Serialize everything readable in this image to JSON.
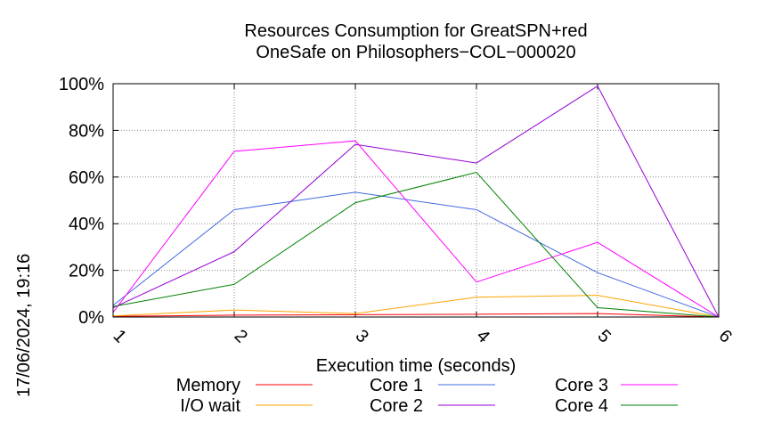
{
  "chart_data": {
    "type": "line",
    "title": [
      "Resources Consumption for GreatSPN+red",
      "OneSafe on Philosophers−COL−000020"
    ],
    "xlabel": "Execution time (seconds)",
    "ylabel": "",
    "xlim": [
      1,
      6
    ],
    "ylim": [
      0,
      100
    ],
    "x_ticks": [
      "1",
      "2",
      "3",
      "4",
      "5",
      "6"
    ],
    "y_ticks": [
      "0%",
      "20%",
      "40%",
      "60%",
      "80%",
      "100%"
    ],
    "y_tick_values": [
      0,
      20,
      40,
      60,
      80,
      100
    ],
    "grid": true,
    "legend_position": "bottom",
    "timestamp": "17/06/2024, 19:16",
    "x": [
      1,
      2,
      3,
      4,
      5,
      6
    ],
    "series": [
      {
        "name": "Memory",
        "color": "#ff0000",
        "values": [
          0.3,
          0.8,
          1,
          1.2,
          1.5,
          0
        ]
      },
      {
        "name": "I/O wait",
        "color": "#ffa500",
        "values": [
          0.5,
          3,
          1.5,
          8.5,
          9.3,
          0
        ]
      },
      {
        "name": "Core 1",
        "color": "#4169e1",
        "values": [
          5,
          46,
          53.5,
          46,
          19,
          0
        ]
      },
      {
        "name": "Core 2",
        "color": "#9400d3",
        "values": [
          4,
          28,
          74,
          66,
          99,
          0
        ]
      },
      {
        "name": "Core 3",
        "color": "#ff00ff",
        "values": [
          2,
          71,
          75.5,
          15,
          32,
          0
        ]
      },
      {
        "name": "Core 4",
        "color": "#008000",
        "values": [
          4.5,
          14,
          49,
          62,
          4,
          0
        ]
      }
    ]
  }
}
